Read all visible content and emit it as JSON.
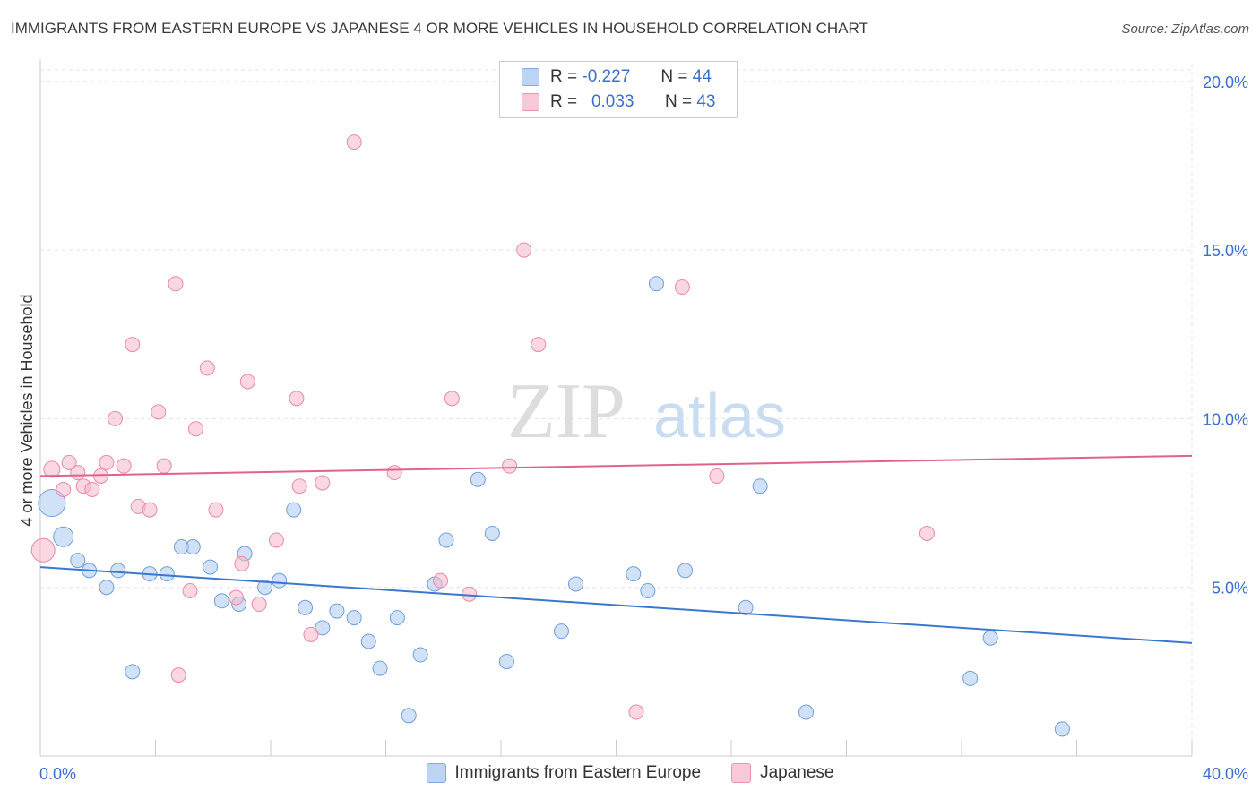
{
  "title": "IMMIGRANTS FROM EASTERN EUROPE VS JAPANESE 4 OR MORE VEHICLES IN HOUSEHOLD CORRELATION CHART",
  "source": "Source: ZipAtlas.com",
  "watermark": {
    "zip": "ZIP",
    "atlas": "atlas"
  },
  "legend": {
    "r_label": "R =",
    "n_label": "N =",
    "rows": [
      {
        "r": "-0.227",
        "n": "44",
        "color": "#a9c8f2"
      },
      {
        "r": "0.033",
        "n": "43",
        "color": "#f6b6c9"
      }
    ]
  },
  "chart_data": {
    "type": "scatter",
    "title": "IMMIGRANTS FROM EASTERN EUROPE VS JAPANESE 4 OR MORE VEHICLES IN HOUSEHOLD CORRELATION CHART",
    "xlabel": "",
    "ylabel": "4 or more Vehicles in Household",
    "xlim": [
      0,
      40
    ],
    "ylim": [
      0,
      20.5
    ],
    "x_tick_labels": [
      "0.0%",
      "40.0%"
    ],
    "y_ticks": [
      5,
      10,
      15,
      20
    ],
    "y_tick_labels": [
      "5.0%",
      "10.0%",
      "15.0%",
      "20.0%"
    ],
    "grid": true,
    "legend_placement": "bottom-center",
    "series": [
      {
        "name": "Immigrants from Eastern Europe",
        "color": "#a9c8f2",
        "stroke": "#6f9fdc",
        "trend": {
          "color": "#3a78d0",
          "x0": 0,
          "y0": 5.6,
          "x1": 40,
          "y1": 3.35
        },
        "points": [
          [
            0.4,
            7.5,
            14
          ],
          [
            0.8,
            6.5,
            10
          ],
          [
            1.3,
            5.8,
            7
          ],
          [
            1.7,
            5.5,
            7
          ],
          [
            2.3,
            5.0,
            7
          ],
          [
            2.7,
            5.5,
            7
          ],
          [
            3.2,
            2.5,
            7
          ],
          [
            3.8,
            5.4,
            7
          ],
          [
            4.4,
            5.4,
            7
          ],
          [
            4.9,
            6.2,
            7
          ],
          [
            5.3,
            6.2,
            7
          ],
          [
            5.9,
            5.6,
            7
          ],
          [
            6.3,
            4.6,
            7
          ],
          [
            6.9,
            4.5,
            7
          ],
          [
            7.1,
            6.0,
            7
          ],
          [
            7.8,
            5.0,
            7
          ],
          [
            8.3,
            5.2,
            7
          ],
          [
            8.8,
            7.3,
            7
          ],
          [
            9.2,
            4.4,
            7
          ],
          [
            9.8,
            3.8,
            7
          ],
          [
            10.3,
            4.3,
            7
          ],
          [
            10.9,
            4.1,
            7
          ],
          [
            11.4,
            3.4,
            7
          ],
          [
            11.8,
            2.6,
            7
          ],
          [
            12.4,
            4.1,
            7
          ],
          [
            12.8,
            1.2,
            7
          ],
          [
            13.2,
            3.0,
            7
          ],
          [
            13.7,
            5.1,
            7
          ],
          [
            14.1,
            6.4,
            7
          ],
          [
            15.2,
            8.2,
            7
          ],
          [
            15.7,
            6.6,
            7
          ],
          [
            16.2,
            2.8,
            7
          ],
          [
            18.1,
            3.7,
            7
          ],
          [
            18.6,
            5.1,
            7
          ],
          [
            20.6,
            5.4,
            7
          ],
          [
            21.1,
            4.9,
            7
          ],
          [
            21.4,
            14.0,
            7
          ],
          [
            22.4,
            5.5,
            7
          ],
          [
            24.5,
            4.4,
            7
          ],
          [
            25.0,
            8.0,
            7
          ],
          [
            26.6,
            1.3,
            7
          ],
          [
            32.3,
            2.3,
            7
          ],
          [
            33.0,
            3.5,
            7
          ],
          [
            35.5,
            0.8,
            7
          ]
        ]
      },
      {
        "name": "Japanese",
        "color": "#f6b6c9",
        "stroke": "#e88aa8",
        "trend": {
          "color": "#e0638c",
          "x0": 0,
          "y0": 8.3,
          "x1": 40,
          "y1": 8.9
        },
        "points": [
          [
            0.1,
            6.1,
            12
          ],
          [
            0.4,
            8.5,
            8
          ],
          [
            0.8,
            7.9,
            7
          ],
          [
            1.0,
            8.7,
            7
          ],
          [
            1.3,
            8.4,
            7
          ],
          [
            1.5,
            8.0,
            7
          ],
          [
            1.8,
            7.9,
            7
          ],
          [
            2.1,
            8.3,
            7
          ],
          [
            2.3,
            8.7,
            7
          ],
          [
            2.6,
            10.0,
            7
          ],
          [
            2.9,
            8.6,
            7
          ],
          [
            3.2,
            12.2,
            7
          ],
          [
            3.4,
            7.4,
            7
          ],
          [
            3.8,
            7.3,
            7
          ],
          [
            4.1,
            10.2,
            7
          ],
          [
            4.3,
            8.6,
            7
          ],
          [
            4.7,
            14.0,
            7
          ],
          [
            4.8,
            2.4,
            7
          ],
          [
            5.2,
            4.9,
            7
          ],
          [
            5.4,
            9.7,
            7
          ],
          [
            5.8,
            11.5,
            7
          ],
          [
            6.1,
            7.3,
            7
          ],
          [
            6.8,
            4.7,
            7
          ],
          [
            7.0,
            5.7,
            7
          ],
          [
            7.2,
            11.1,
            7
          ],
          [
            7.6,
            4.5,
            7
          ],
          [
            8.2,
            6.4,
            7
          ],
          [
            8.9,
            10.6,
            7
          ],
          [
            9.0,
            8.0,
            7
          ],
          [
            9.4,
            3.6,
            7
          ],
          [
            9.8,
            8.1,
            7
          ],
          [
            10.9,
            18.2,
            7
          ],
          [
            12.3,
            8.4,
            7
          ],
          [
            13.9,
            5.2,
            7
          ],
          [
            14.3,
            10.6,
            7
          ],
          [
            14.9,
            4.8,
            7
          ],
          [
            16.3,
            8.6,
            7
          ],
          [
            16.8,
            15.0,
            7
          ],
          [
            17.3,
            12.2,
            7
          ],
          [
            20.7,
            1.3,
            7
          ],
          [
            22.3,
            13.9,
            7
          ],
          [
            23.5,
            8.3,
            7
          ],
          [
            30.8,
            6.6,
            7
          ]
        ]
      }
    ]
  },
  "bottom_legend": [
    {
      "label": "Immigrants from Eastern Europe",
      "color": "#a9c8f2"
    },
    {
      "label": "Japanese",
      "color": "#f6b6c9"
    }
  ]
}
